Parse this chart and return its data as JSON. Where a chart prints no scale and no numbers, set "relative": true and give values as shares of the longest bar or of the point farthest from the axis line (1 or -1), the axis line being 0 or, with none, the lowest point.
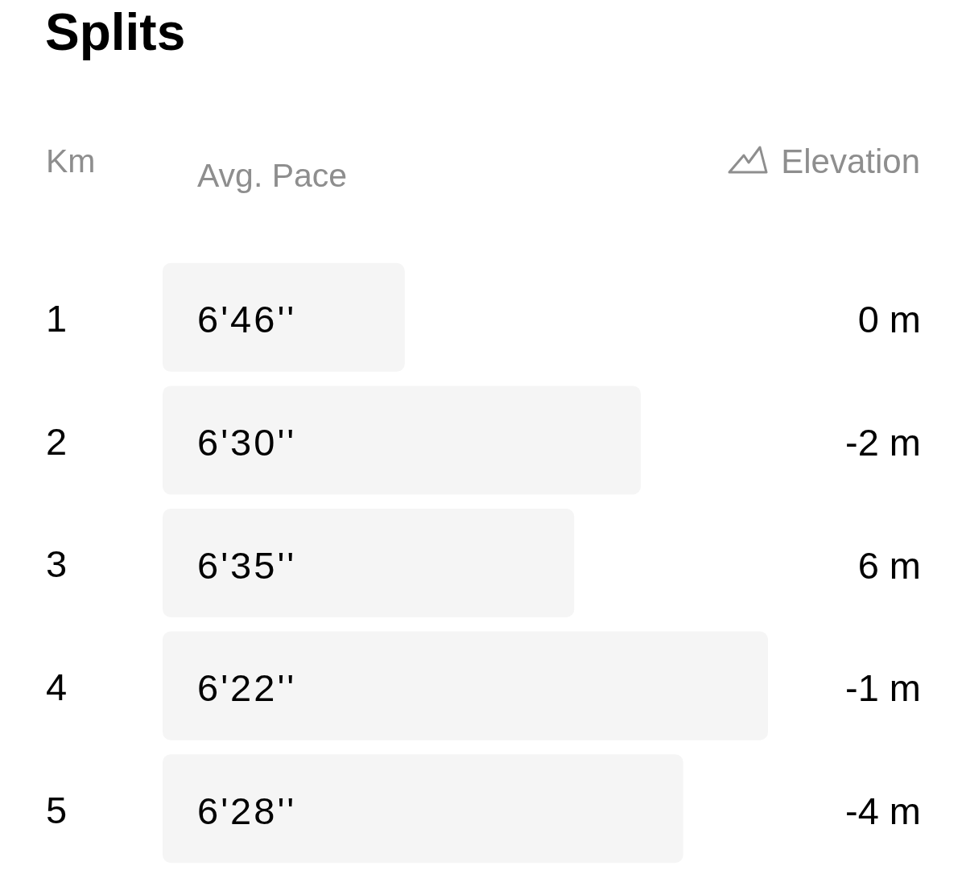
{
  "chart_data": {
    "type": "bar",
    "orientation": "horizontal",
    "relative": true,
    "title": "Splits",
    "ylabel": "Km",
    "xlabel": "Avg. Pace",
    "categories": [
      "1",
      "2",
      "3",
      "4",
      "5"
    ],
    "values": [
      0.4,
      0.79,
      0.68,
      1,
      0.86
    ],
    "color": "#f5f5f5",
    "annotations": [
      "Elevation",
      {
        "text": "6'46''",
        "y": "1"
      },
      {
        "text": "6'30''",
        "y": "2"
      },
      {
        "text": "6'35''",
        "y": "3"
      },
      {
        "text": "6'22''",
        "y": "4"
      },
      {
        "text": "6'28''",
        "y": "5"
      },
      "0 m",
      "-2 m",
      "6 m",
      "-1 m",
      "-4 m"
    ]
  }
}
